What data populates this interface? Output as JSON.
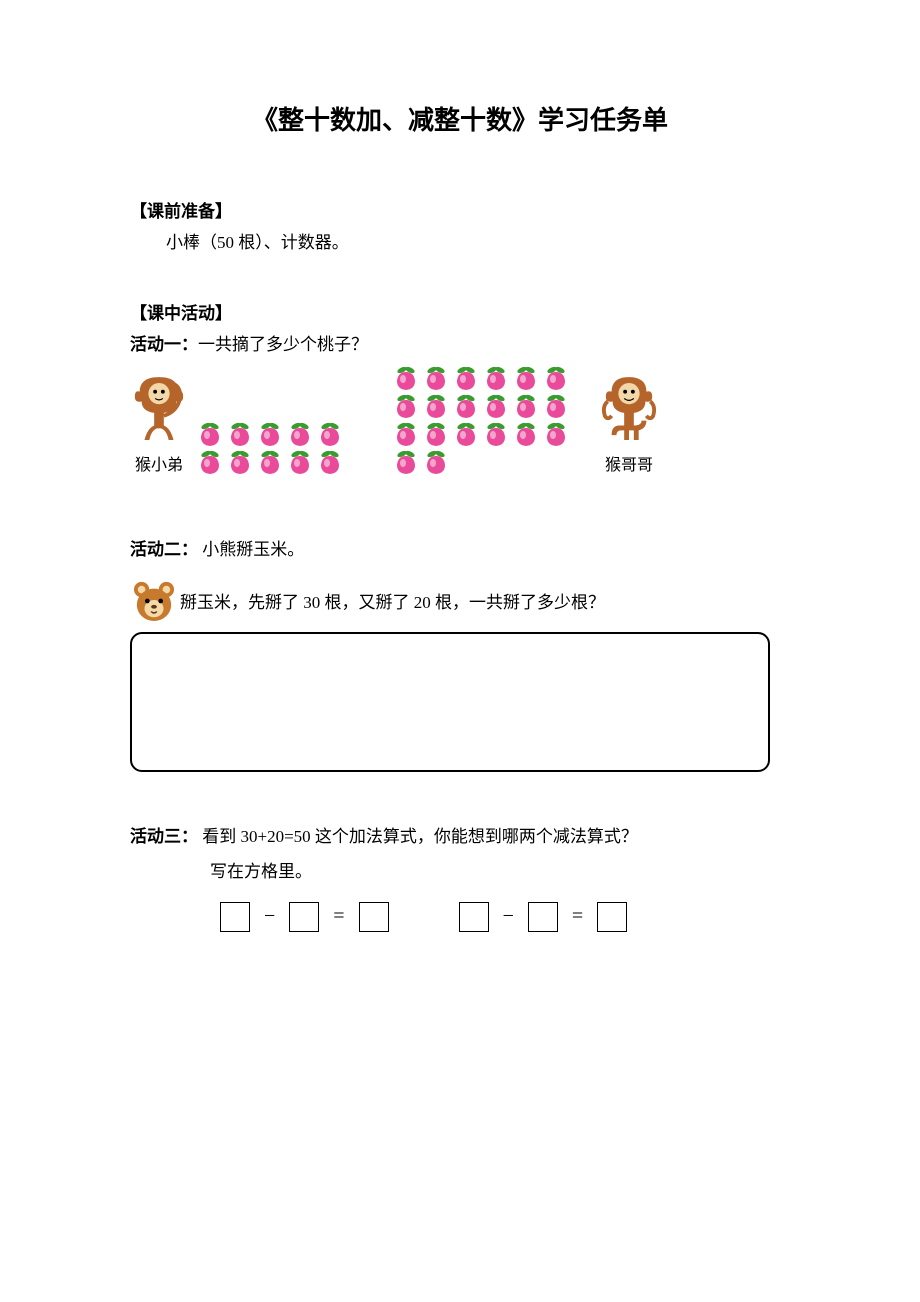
{
  "title": "《整十数加、减整十数》学习任务单",
  "prep": {
    "header": "【课前准备】",
    "text": "小棒（50 根）、计数器。"
  },
  "activities_header": "【课中活动】",
  "activity1": {
    "label": "活动一：",
    "question": "一共摘了多少个桃子？",
    "left_monkey_label": "猴小弟",
    "right_monkey_label": "猴哥哥",
    "peach_counts": {
      "left_group": 10,
      "right_group": 20
    },
    "peach_color": "#e94b9a",
    "leaf_color": "#3a9b2e",
    "monkey_body_color": "#b5652a",
    "monkey_face_color": "#f4d7a8"
  },
  "activity2": {
    "label": "活动二：",
    "title": " 小熊掰玉米。",
    "bear_color": "#c77a2e",
    "bear_face_color": "#f5d9a6",
    "sentence": "掰玉米，先掰了 30 根，又掰了 20 根，一共掰了多少根？"
  },
  "activity3": {
    "label": "活动三：",
    "question": " 看到 30+20=50 这个加法算式，你能想到哪两个减法算式？",
    "line2": "写在方格里。",
    "minus": "−",
    "equals": "="
  },
  "colors": {
    "text": "#000000",
    "background": "#ffffff",
    "border": "#000000"
  }
}
